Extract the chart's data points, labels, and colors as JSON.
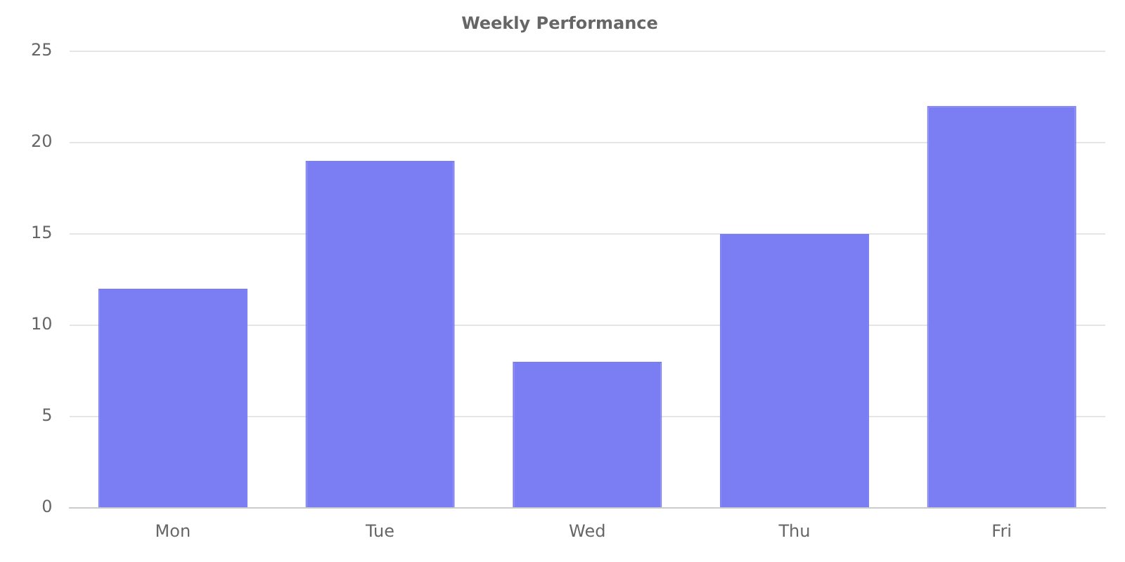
{
  "chart_data": {
    "type": "bar",
    "title": "Weekly Performance",
    "categories": [
      "Mon",
      "Tue",
      "Wed",
      "Thu",
      "Fri"
    ],
    "values": [
      12,
      19,
      8,
      15,
      22
    ],
    "color": "#7b7ef3",
    "ylim": [
      0,
      25
    ],
    "yticks": [
      0,
      5,
      10,
      15,
      20,
      25
    ],
    "grid": "y"
  }
}
